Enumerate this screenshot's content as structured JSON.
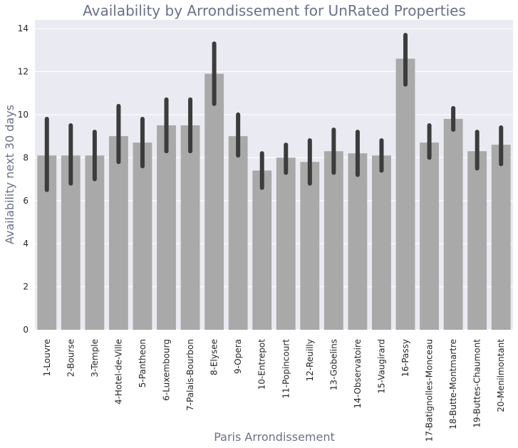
{
  "chart_data": {
    "type": "bar",
    "title": "Availability by Arrondissement for UnRated Properties",
    "xlabel": "Paris Arrondissement",
    "ylabel": "Availability next 30 days",
    "ylim": [
      0,
      14.4
    ],
    "yticks": [
      0,
      2,
      4,
      6,
      8,
      10,
      12,
      14
    ],
    "grid": true,
    "categories": [
      "1-Louvre",
      "2-Bourse",
      "3-Temple",
      "4-Hotel-de-Ville",
      "5-Pantheon",
      "6-Luxembourg",
      "7-Palais-Bourbon",
      "8-Elysee",
      "9-Opera",
      "10-Entrepot",
      "11-Popincourt",
      "12-Reuilly",
      "13-Gobelins",
      "14-Observatoire",
      "15-Vaugirard",
      "16-Passy",
      "17-Batignolles-Monceau",
      "18-Butte-Montmartre",
      "19-Buttes-Chaumont",
      "20-Menilmontant"
    ],
    "values": [
      8.1,
      8.1,
      8.1,
      9.0,
      8.7,
      9.5,
      9.5,
      11.9,
      9.0,
      7.4,
      8.0,
      7.8,
      8.3,
      8.2,
      8.1,
      12.6,
      8.7,
      9.8,
      8.3,
      8.6
    ],
    "error_low": [
      6.5,
      6.8,
      7.0,
      7.8,
      7.6,
      8.3,
      8.3,
      10.5,
      8.1,
      6.6,
      7.3,
      6.8,
      7.3,
      7.2,
      7.4,
      11.4,
      8.0,
      9.3,
      7.5,
      7.7
    ],
    "error_high": [
      9.8,
      9.5,
      9.2,
      10.4,
      9.8,
      10.7,
      10.7,
      13.3,
      10.0,
      8.2,
      8.6,
      8.8,
      9.3,
      9.2,
      8.8,
      13.7,
      9.5,
      10.3,
      9.2,
      9.4
    ],
    "colors": {
      "background": "#eaeaf2",
      "grid": "#ffffff",
      "bar": "#a9a9a9",
      "error_bar": "#3c3c3c"
    }
  }
}
